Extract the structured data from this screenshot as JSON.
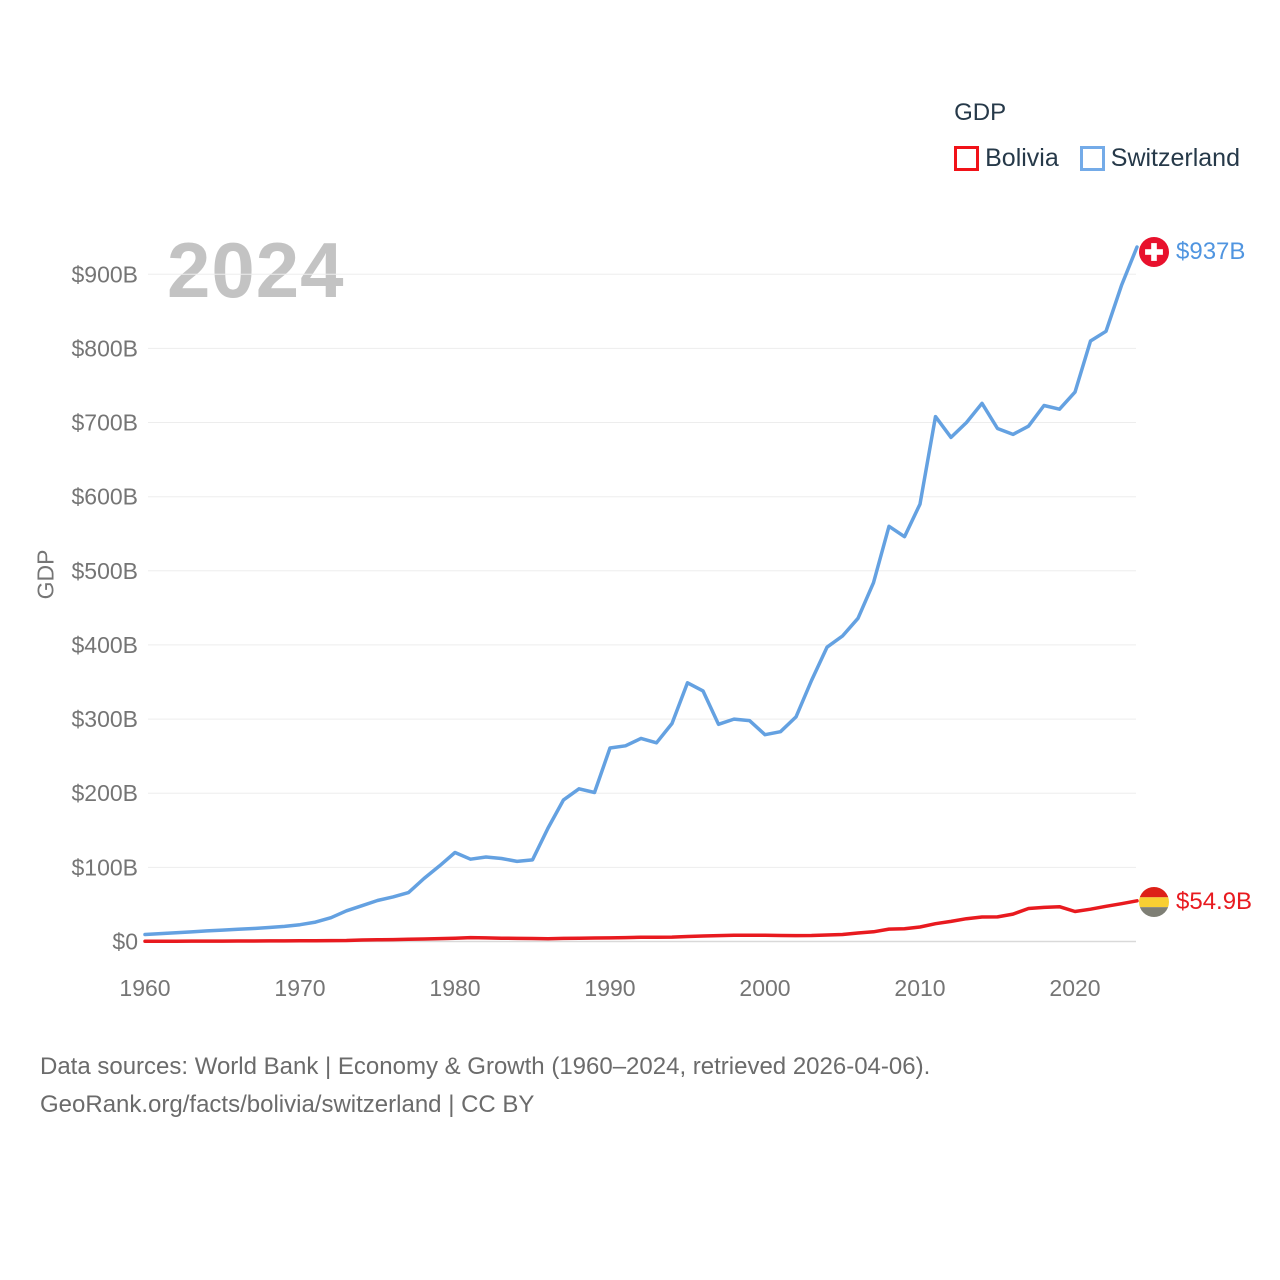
{
  "watermark_year": "2024",
  "legend": {
    "title": "GDP",
    "items": [
      {
        "label": "Bolivia",
        "color": "#e81a1f"
      },
      {
        "label": "Switzerland",
        "color": "#64a1e1"
      }
    ]
  },
  "end_labels": {
    "switzerland_value": "$937B",
    "bolivia_value": "$54.9B",
    "switzerland_flag": "swiss-flag-red-white-cross",
    "bolivia_flag": "bolivia-flag-red-yellow-gray-stripes"
  },
  "footer": {
    "line1": "Data sources: World Bank | Economy & Growth (1960–2024, retrieved 2026-04-06).",
    "line2": "GeoRank.org/facts/bolivia/switzerland | CC BY"
  },
  "chart_data": {
    "type": "line",
    "title": "GDP",
    "xlabel": "",
    "ylabel": "GDP",
    "xlim": [
      1960,
      2024
    ],
    "ylim": [
      0,
      960
    ],
    "grid": "horizontal",
    "legend_position": "top-right",
    "x_ticks": [
      "1960",
      "1970",
      "1980",
      "1990",
      "2000",
      "2010",
      "2020"
    ],
    "y_ticks": [
      "$0",
      "$100B",
      "$200B",
      "$300B",
      "$400B",
      "$500B",
      "$600B",
      "$700B",
      "$800B",
      "$900B"
    ],
    "y_tick_values": [
      0,
      100,
      200,
      300,
      400,
      500,
      600,
      700,
      800,
      900
    ],
    "years": [
      1960,
      1961,
      1962,
      1963,
      1964,
      1965,
      1966,
      1967,
      1968,
      1969,
      1970,
      1971,
      1972,
      1973,
      1974,
      1975,
      1976,
      1977,
      1978,
      1979,
      1980,
      1981,
      1982,
      1983,
      1984,
      1985,
      1986,
      1987,
      1988,
      1989,
      1990,
      1991,
      1992,
      1993,
      1994,
      1995,
      1996,
      1997,
      1998,
      1999,
      2000,
      2001,
      2002,
      2003,
      2004,
      2005,
      2006,
      2007,
      2008,
      2009,
      2010,
      2011,
      2012,
      2013,
      2014,
      2015,
      2016,
      2017,
      2018,
      2019,
      2020,
      2021,
      2022,
      2023,
      2024
    ],
    "series": [
      {
        "name": "Bolivia",
        "color": "#e81a1f",
        "unit": "billion USD",
        "end_label": "$54.9B",
        "values": [
          0.4,
          0.4,
          0.45,
          0.5,
          0.55,
          0.6,
          0.65,
          0.7,
          0.75,
          0.85,
          1.0,
          1.1,
          1.2,
          1.4,
          2.0,
          2.3,
          2.6,
          3.0,
          3.4,
          3.9,
          4.5,
          5.2,
          4.8,
          4.5,
          4.2,
          4.0,
          3.8,
          4.2,
          4.4,
          4.7,
          4.9,
          5.3,
          5.6,
          5.7,
          6.0,
          6.7,
          7.4,
          7.9,
          8.5,
          8.3,
          8.4,
          8.1,
          7.9,
          8.1,
          8.8,
          9.5,
          11.5,
          13.1,
          16.7,
          17.3,
          19.6,
          24.0,
          27.1,
          30.7,
          33.0,
          33.2,
          37.0,
          44.5,
          46.0,
          47.0,
          40.5,
          43.5,
          47.5,
          51.0,
          54.9
        ]
      },
      {
        "name": "Switzerland",
        "color": "#64a1e1",
        "unit": "billion USD",
        "end_label": "$937B",
        "values": [
          9.5,
          10.7,
          11.8,
          12.9,
          14.3,
          15.4,
          16.4,
          17.6,
          18.9,
          20.4,
          22.6,
          26.2,
          32.1,
          41.4,
          48.3,
          55.3,
          60.1,
          66.0,
          85.0,
          102.0,
          120.0,
          111.0,
          114.0,
          112.0,
          108.0,
          110.0,
          153.0,
          191.0,
          206.0,
          201.0,
          261.0,
          264.0,
          274.0,
          268.0,
          294.0,
          349.0,
          338.0,
          293.0,
          300.0,
          298.0,
          279.0,
          283.0,
          303.0,
          352.0,
          397.0,
          412.0,
          436.0,
          484.0,
          560.0,
          546.0,
          590.0,
          708.0,
          680.0,
          700.0,
          726.0,
          692.0,
          684.0,
          695.0,
          723.0,
          718.0,
          741.0,
          810.0,
          823.0,
          885.0,
          936.7
        ]
      }
    ]
  }
}
